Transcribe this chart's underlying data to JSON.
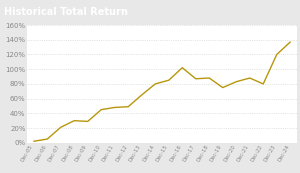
{
  "title": "Historical Total Return",
  "title_bg_color": "#4a9fb5",
  "title_text_color": "#ffffff",
  "line_color": "#b8960c",
  "bg_color": "#e8e8e8",
  "plot_bg_color": "#ffffff",
  "grid_color": "#cccccc",
  "tick_label_color": "#888888",
  "x_labels": [
    "Dec-05",
    "Dec-06",
    "Dec-07",
    "Dec-08",
    "Dec-09",
    "Dec-10",
    "Dec-11",
    "Dec-12",
    "Dec-13",
    "Dec-14",
    "Dec-15",
    "Dec-16",
    "Dec-17",
    "Dec-18",
    "Dec-19",
    "Dec-20",
    "Dec-21",
    "Dec-22",
    "Dec-23",
    "Dec-24"
  ],
  "y_values": [
    2,
    5,
    21,
    30,
    29,
    45,
    48,
    49,
    65,
    80,
    85,
    102,
    87,
    88,
    75,
    83,
    88,
    80,
    120,
    137
  ],
  "ylim": [
    0,
    160
  ],
  "yticks": [
    0,
    20,
    40,
    60,
    80,
    100,
    120,
    140,
    160
  ],
  "ytick_labels": [
    "0%",
    "20%",
    "40%",
    "60%",
    "80%",
    "100%",
    "120%",
    "140%",
    "160%"
  ]
}
